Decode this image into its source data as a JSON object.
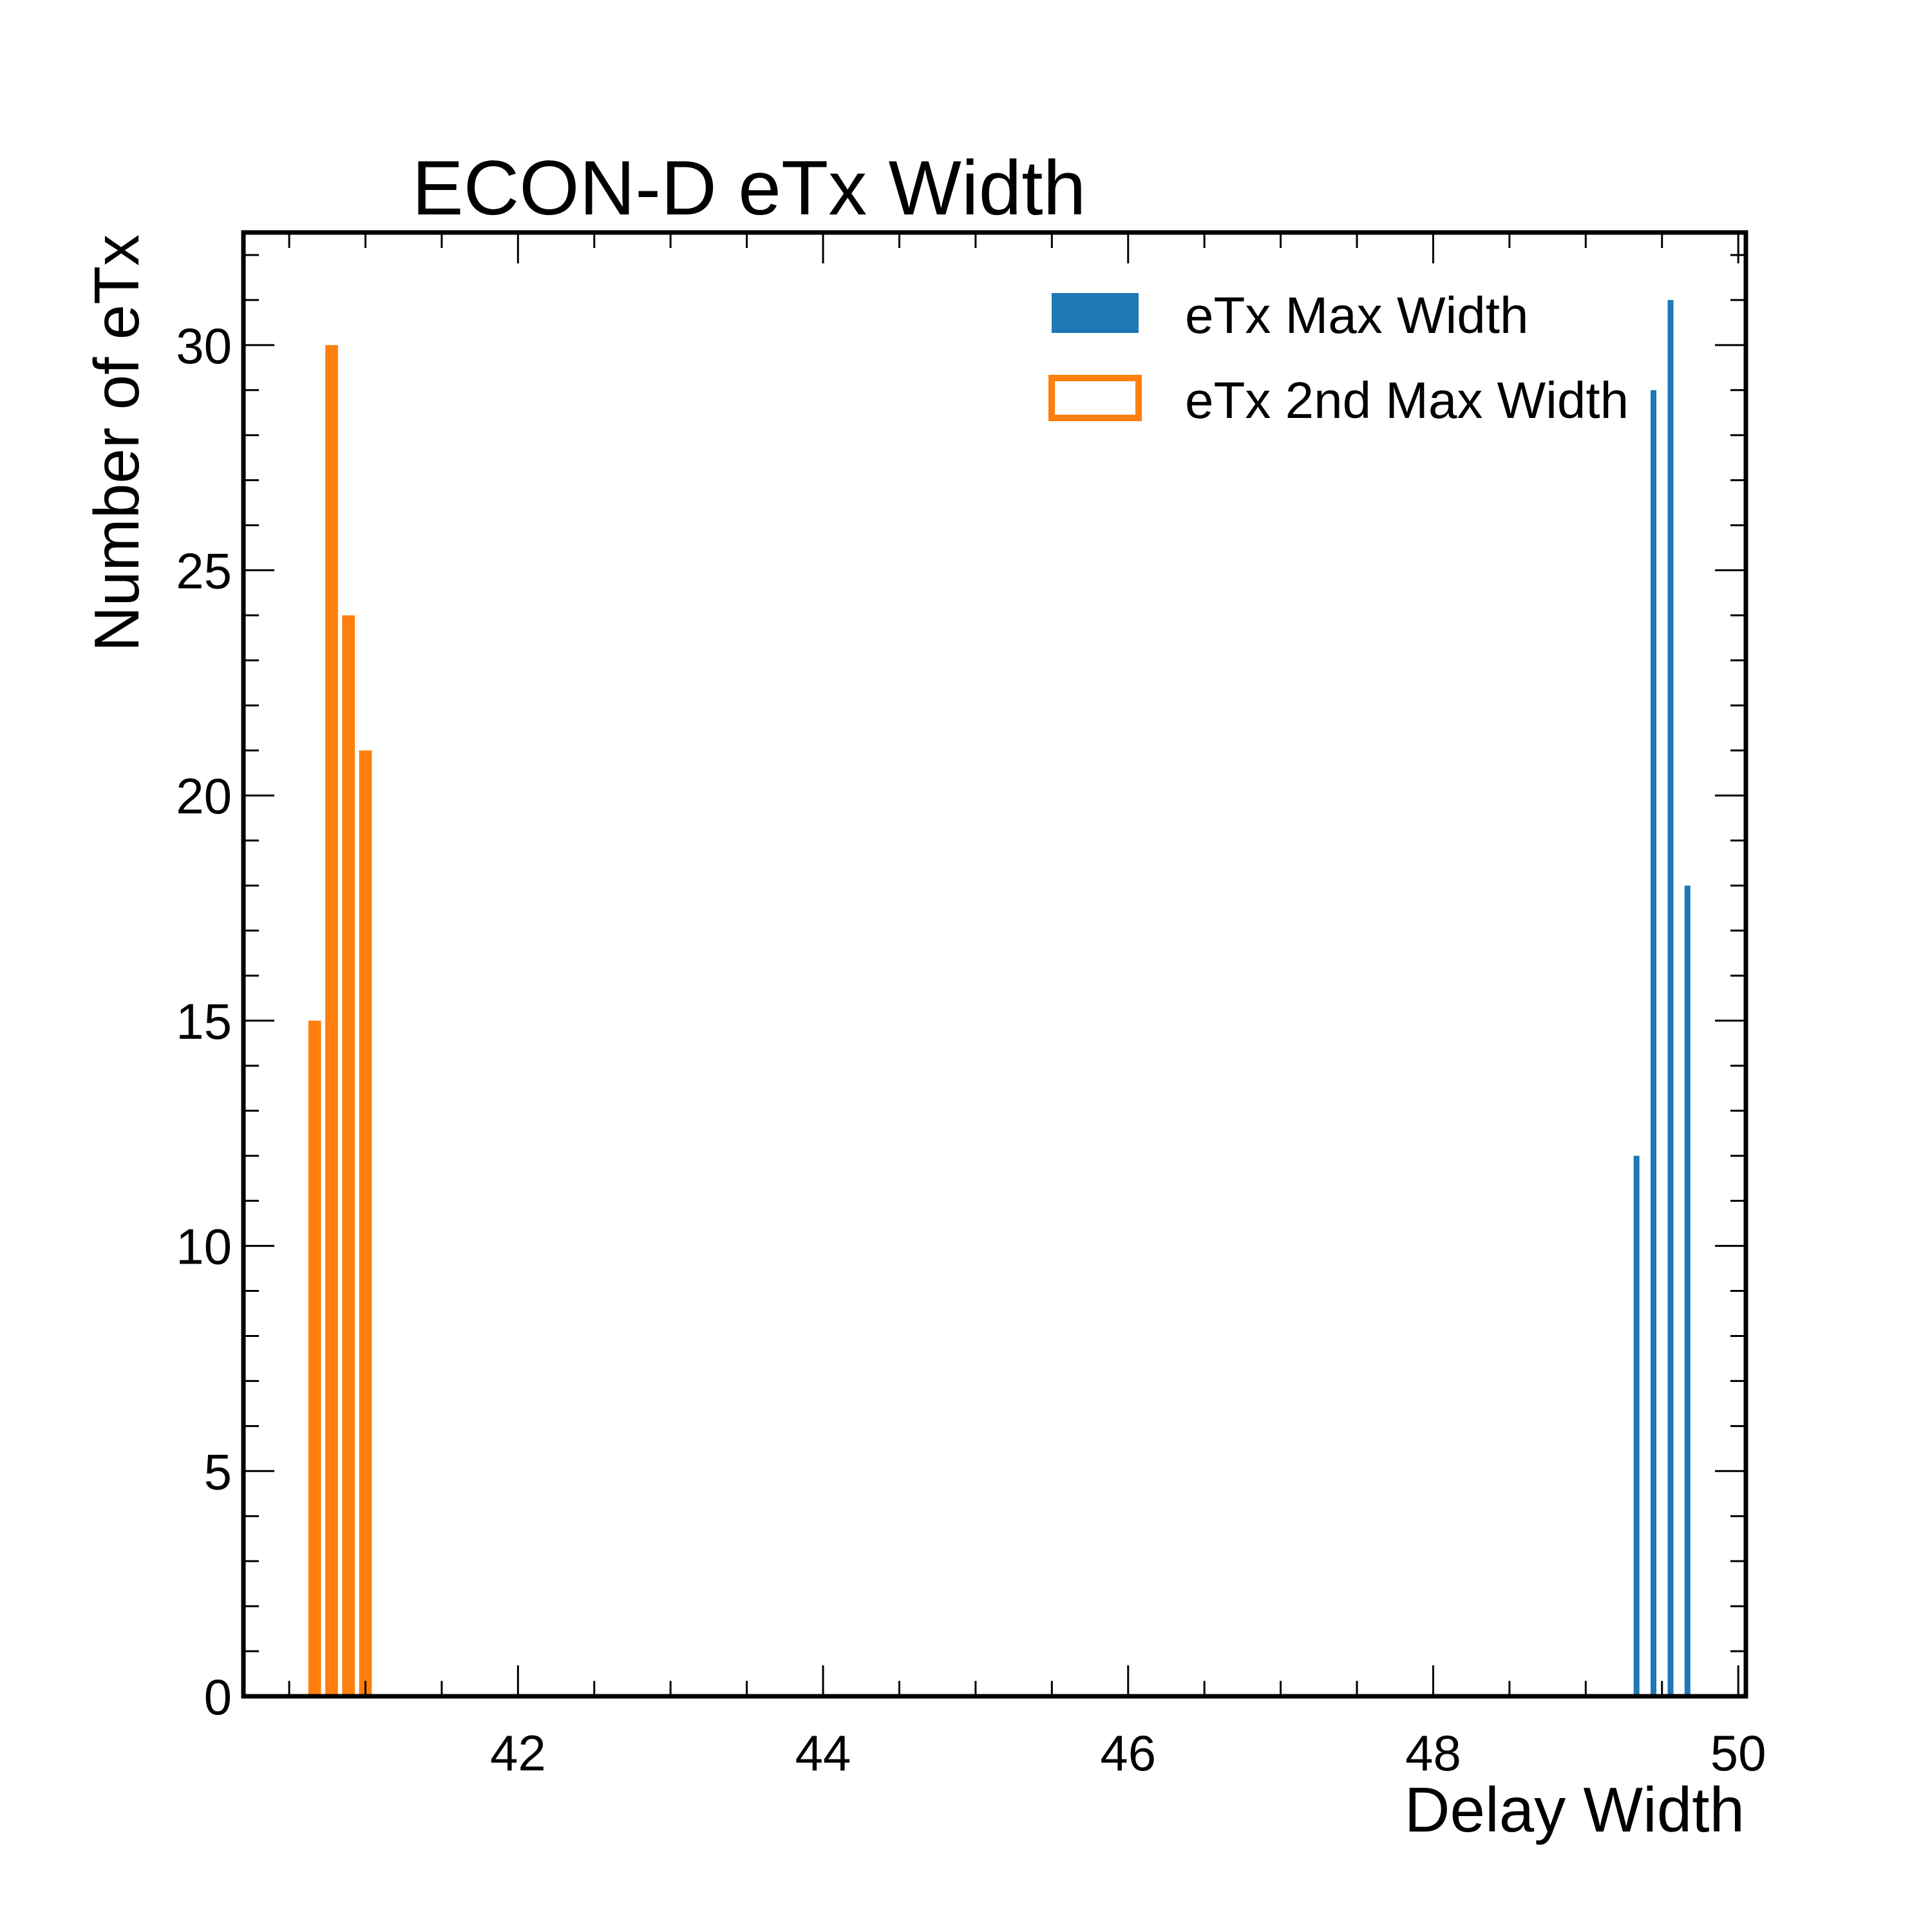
{
  "chart_data": {
    "type": "bar",
    "title": "ECON-D eTx Width",
    "xlabel": "Delay Width",
    "ylabel": "Number of eTx",
    "xlim": [
      40.2,
      50.05
    ],
    "ylim": [
      0,
      32.5
    ],
    "x_ticks": [
      "42",
      "44",
      "46",
      "48",
      "50"
    ],
    "y_ticks": [
      "0",
      "5",
      "10",
      "15",
      "20",
      "25",
      "30"
    ],
    "legend_position": "top-right",
    "grid": false,
    "series": [
      {
        "name": "eTx Max Width",
        "color": "#1f77b4",
        "style": "filled",
        "bars": [
          {
            "x": 49.333,
            "value": 12
          },
          {
            "x": 49.444,
            "value": 29
          },
          {
            "x": 49.556,
            "value": 31
          },
          {
            "x": 49.667,
            "value": 18
          }
        ]
      },
      {
        "name": "eTx 2nd Max Width",
        "color": "#ff7f0e",
        "style": "outline",
        "bars": [
          {
            "x": 40.667,
            "value": 15
          },
          {
            "x": 40.778,
            "value": 30
          },
          {
            "x": 40.889,
            "value": 24
          },
          {
            "x": 41.0,
            "value": 21
          }
        ]
      }
    ]
  }
}
